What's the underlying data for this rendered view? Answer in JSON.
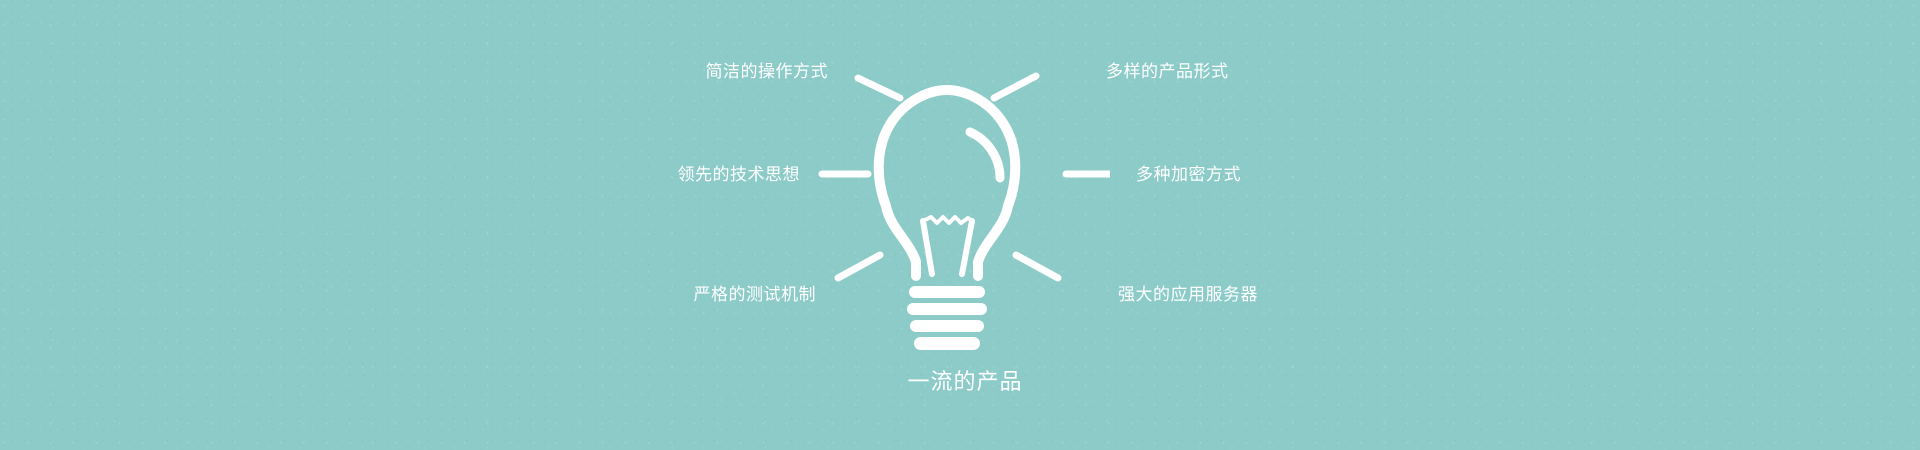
{
  "labels": {
    "top_left": "简洁的操作方式",
    "middle_left": "领先的技术思想",
    "bottom_left": "严格的测试机制",
    "top_right": "多样的产品形式",
    "middle_right": "多种加密方式",
    "bottom_right": "强大的应用服务器"
  },
  "title": "一流的产品",
  "icon": "lightbulb-icon",
  "colors": {
    "background": "#8ccbc8",
    "foreground": "#ffffff"
  }
}
